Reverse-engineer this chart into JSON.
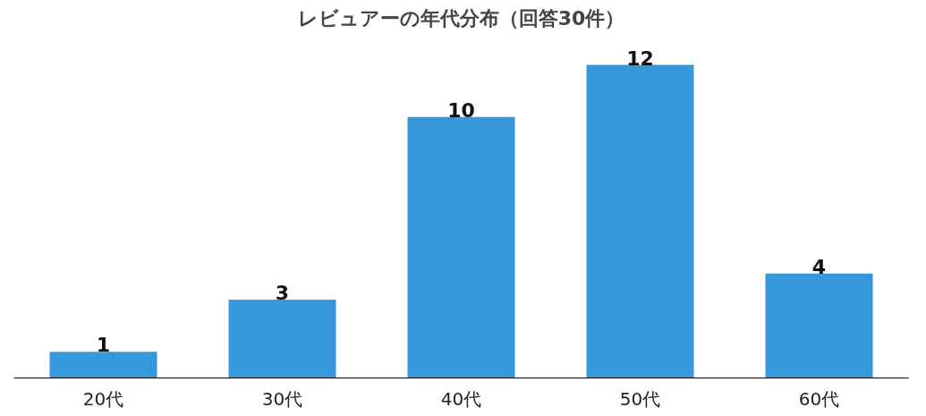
{
  "chart_data": {
    "type": "bar",
    "title": "レビュアーの年代分布（回答30件）",
    "categories": [
      "20代",
      "30代",
      "40代",
      "50代",
      "60代"
    ],
    "values": [
      1,
      3,
      10,
      12,
      4
    ],
    "color": "#3598db",
    "data_labels": true,
    "tick_labels": "x",
    "grid": false
  }
}
